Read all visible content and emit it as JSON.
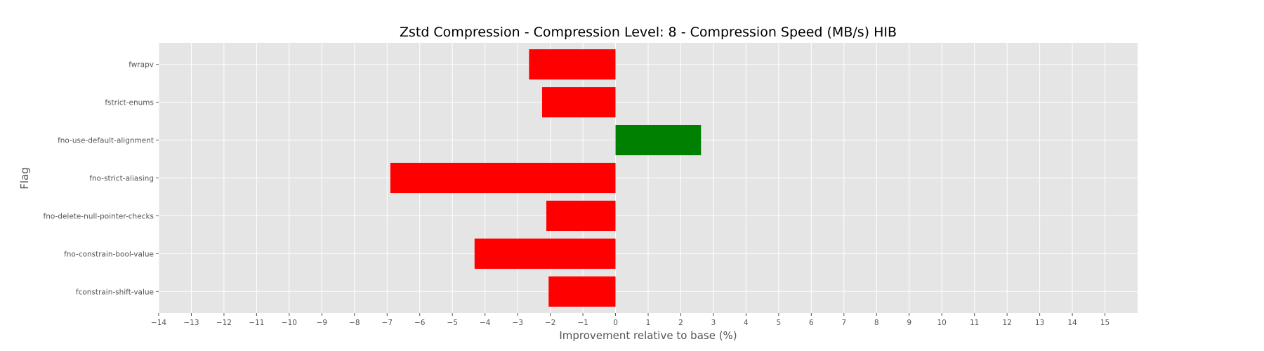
{
  "chart_data": {
    "type": "bar",
    "orientation": "horizontal",
    "title": "Zstd Compression - Compression Level: 8 - Compression Speed (MB/s) HIB",
    "xlabel": "Improvement relative to base (%)",
    "ylabel": "Flag",
    "xlim": [
      -14,
      16
    ],
    "xticks": [
      -14,
      -13,
      -12,
      -11,
      -10,
      -9,
      -8,
      -7,
      -6,
      -5,
      -4,
      -3,
      -2,
      -1,
      0,
      1,
      2,
      3,
      4,
      5,
      6,
      7,
      8,
      9,
      10,
      11,
      12,
      13,
      14,
      15
    ],
    "xtick_labels": [
      "−14",
      "−13",
      "−12",
      "−11",
      "−10",
      "−9",
      "−8",
      "−7",
      "−6",
      "−5",
      "−4",
      "−3",
      "−2",
      "−1",
      "0",
      "1",
      "2",
      "3",
      "4",
      "5",
      "6",
      "7",
      "8",
      "9",
      "10",
      "11",
      "12",
      "13",
      "14",
      "15"
    ],
    "grid": true,
    "categories": [
      "fwrapv",
      "fstrict-enums",
      "fno-use-default-alignment",
      "fno-strict-aliasing",
      "fno-delete-null-pointer-checks",
      "fno-constrain-bool-value",
      "fconstrain-shift-value"
    ],
    "values": [
      -2.65,
      -2.25,
      2.62,
      -6.9,
      -2.12,
      -4.32,
      -2.05
    ],
    "colors": {
      "positive": "#008000",
      "negative": "#ff0000",
      "plot_background": "#e5e5e5",
      "grid": "#ffffff"
    }
  }
}
